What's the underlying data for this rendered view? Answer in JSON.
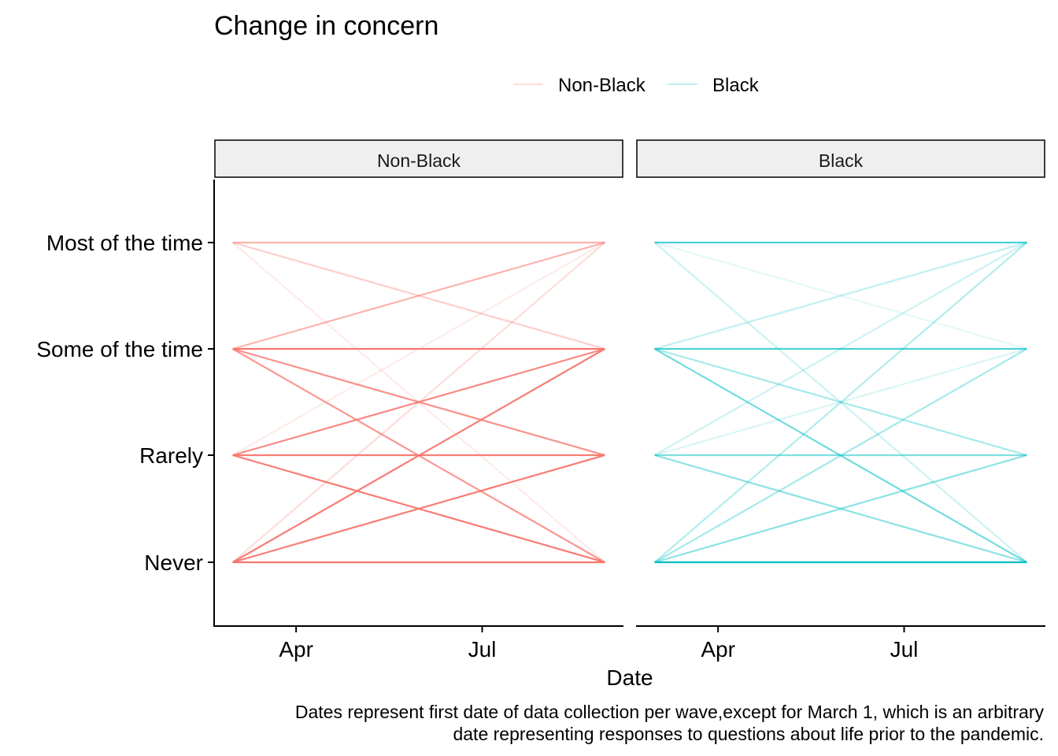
{
  "chart_data": {
    "type": "line",
    "title": "Change in concern",
    "xlabel": "Date",
    "ylabel": "",
    "caption_lines": [
      "Dates represent first date of data collection per wave,except for March 1, which is an arbitrary",
      "date representing responses to questions about life prior to the pandemic."
    ],
    "legend": {
      "position": "top",
      "entries": [
        {
          "label": "Non-Black",
          "color": "#F8766D"
        },
        {
          "label": "Black",
          "color": "#00BFC4"
        }
      ]
    },
    "x_domain": [
      "2020-03-01",
      "2020-08-30"
    ],
    "x_ticks": [
      {
        "label": "Apr",
        "date": "2020-04-01"
      },
      {
        "label": "Jul",
        "date": "2020-07-01"
      }
    ],
    "y_levels": [
      "Never",
      "Rarely",
      "Some of the time",
      "Most of the time"
    ],
    "start_date": "2020-03-01",
    "end_date": "2020-08-30",
    "grid": false,
    "panels": [
      {
        "label": "Non-Black",
        "color": "#F8766D",
        "transitions": [
          {
            "from": "Most of the time",
            "to": "Most of the time",
            "alpha": 0.55
          },
          {
            "from": "Most of the time",
            "to": "Some of the time",
            "alpha": 0.35
          },
          {
            "from": "Most of the time",
            "to": "Never",
            "alpha": 0.15
          },
          {
            "from": "Some of the time",
            "to": "Most of the time",
            "alpha": 0.55
          },
          {
            "from": "Some of the time",
            "to": "Some of the time",
            "alpha": 1.0
          },
          {
            "from": "Some of the time",
            "to": "Rarely",
            "alpha": 0.8
          },
          {
            "from": "Some of the time",
            "to": "Never",
            "alpha": 0.75
          },
          {
            "from": "Rarely",
            "to": "Most of the time",
            "alpha": 0.15
          },
          {
            "from": "Rarely",
            "to": "Some of the time",
            "alpha": 0.85
          },
          {
            "from": "Rarely",
            "to": "Rarely",
            "alpha": 0.95
          },
          {
            "from": "Rarely",
            "to": "Never",
            "alpha": 0.95
          },
          {
            "from": "Never",
            "to": "Most of the time",
            "alpha": 0.25
          },
          {
            "from": "Never",
            "to": "Some of the time",
            "alpha": 0.95
          },
          {
            "from": "Never",
            "to": "Rarely",
            "alpha": 0.95
          },
          {
            "from": "Never",
            "to": "Never",
            "alpha": 1.0
          }
        ]
      },
      {
        "label": "Black",
        "color": "#00BFC4",
        "transitions": [
          {
            "from": "Most of the time",
            "to": "Most of the time",
            "alpha": 0.7
          },
          {
            "from": "Most of the time",
            "to": "Some of the time",
            "alpha": 0.1
          },
          {
            "from": "Most of the time",
            "to": "Never",
            "alpha": 0.2
          },
          {
            "from": "Some of the time",
            "to": "Most of the time",
            "alpha": 0.25
          },
          {
            "from": "Some of the time",
            "to": "Some of the time",
            "alpha": 0.7
          },
          {
            "from": "Some of the time",
            "to": "Rarely",
            "alpha": 0.35
          },
          {
            "from": "Some of the time",
            "to": "Never",
            "alpha": 0.55
          },
          {
            "from": "Rarely",
            "to": "Most of the time",
            "alpha": 0.2
          },
          {
            "from": "Rarely",
            "to": "Some of the time",
            "alpha": 0.15
          },
          {
            "from": "Rarely",
            "to": "Rarely",
            "alpha": 0.5
          },
          {
            "from": "Rarely",
            "to": "Never",
            "alpha": 0.45
          },
          {
            "from": "Never",
            "to": "Most of the time",
            "alpha": 0.3
          },
          {
            "from": "Never",
            "to": "Some of the time",
            "alpha": 0.35
          },
          {
            "from": "Never",
            "to": "Rarely",
            "alpha": 0.45
          },
          {
            "from": "Never",
            "to": "Never",
            "alpha": 1.0
          }
        ]
      }
    ]
  }
}
